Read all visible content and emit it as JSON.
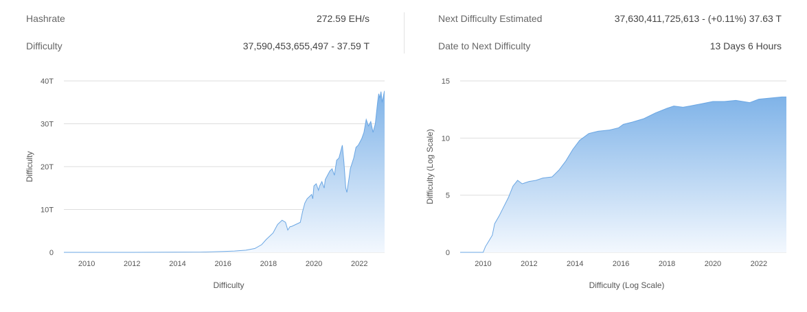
{
  "stats_left": [
    {
      "label": "Hashrate",
      "value": "272.59 EH/s"
    },
    {
      "label": "Difficulty",
      "value": "37,590,453,655,497 - 37.59 T"
    }
  ],
  "stats_right": [
    {
      "label": "Next Difficulty Estimated",
      "value": "37,630,411,725,613 - (+0.11%) 37.63 T"
    },
    {
      "label": "Date to Next Difficulty",
      "value": "13 Days 6 Hours"
    }
  ],
  "colors": {
    "area_top": "#7fb3e8",
    "area_bottom": "#f3f8fe",
    "line": "#6aa6e3",
    "grid": "#dddddd"
  },
  "chart_data": [
    {
      "type": "area",
      "xlabel": "Difficulty",
      "ylabel": "Difficulty",
      "xlim": [
        2009.0,
        2023.2
      ],
      "ylim": [
        0,
        40
      ],
      "x_ticks": [
        2010,
        2012,
        2014,
        2016,
        2018,
        2020,
        2022
      ],
      "y_ticks": [
        0,
        10,
        20,
        30,
        40
      ],
      "y_tick_labels": [
        "0",
        "10T",
        "20T",
        "30T",
        "40T"
      ],
      "grid": true,
      "x": [
        2009.0,
        2012.0,
        2015.0,
        2016.0,
        2016.5,
        2017.0,
        2017.4,
        2017.7,
        2017.9,
        2018.0,
        2018.2,
        2018.4,
        2018.6,
        2018.75,
        2018.85,
        2018.95,
        2019.0,
        2019.2,
        2019.4,
        2019.5,
        2019.6,
        2019.7,
        2019.8,
        2019.9,
        2019.95,
        2020.0,
        2020.1,
        2020.2,
        2020.25,
        2020.35,
        2020.45,
        2020.5,
        2020.6,
        2020.7,
        2020.8,
        2020.9,
        2021.0,
        2021.1,
        2021.2,
        2021.25,
        2021.32,
        2021.4,
        2021.45,
        2021.55,
        2021.6,
        2021.75,
        2021.85,
        2021.95,
        2022.1,
        2022.2,
        2022.3,
        2022.4,
        2022.5,
        2022.6,
        2022.7,
        2022.8,
        2022.85,
        2022.9,
        2022.95,
        2023.0,
        2023.1,
        2023.2
      ],
      "values": [
        0,
        0,
        0.05,
        0.2,
        0.3,
        0.5,
        0.9,
        1.8,
        3.0,
        3.5,
        4.5,
        6.5,
        7.5,
        7.0,
        5.2,
        6.0,
        6.0,
        6.5,
        7.0,
        9.5,
        11.5,
        12.5,
        13.0,
        13.5,
        12.5,
        15.5,
        16.0,
        14.5,
        15.5,
        16.5,
        15.0,
        17.0,
        18.0,
        19.0,
        19.5,
        18.0,
        21.5,
        22.0,
        24.0,
        25.0,
        21.0,
        15.0,
        14.0,
        17.5,
        19.5,
        22.0,
        24.5,
        25.0,
        26.5,
        28.0,
        31.0,
        29.5,
        30.5,
        28.0,
        30.0,
        35.0,
        37.0,
        36.0,
        37.5,
        35.0,
        37.6,
        37.6
      ]
    },
    {
      "type": "area",
      "xlabel": "Difficulty (Log Scale)",
      "ylabel": "Difficulty (Log Scale)",
      "xlim": [
        2009.0,
        2023.2
      ],
      "ylim": [
        0,
        15
      ],
      "x_ticks": [
        2010,
        2012,
        2014,
        2016,
        2018,
        2020,
        2022
      ],
      "y_ticks": [
        0,
        5,
        10,
        15
      ],
      "y_tick_labels": [
        "0",
        "5",
        "10",
        "15"
      ],
      "grid": true,
      "x": [
        2009.0,
        2010.0,
        2010.1,
        2010.25,
        2010.4,
        2010.5,
        2010.7,
        2010.9,
        2011.1,
        2011.3,
        2011.5,
        2011.7,
        2012.0,
        2012.3,
        2012.6,
        2013.0,
        2013.3,
        2013.6,
        2013.9,
        2014.2,
        2014.6,
        2015.0,
        2015.5,
        2015.9,
        2016.1,
        2016.5,
        2017.0,
        2017.5,
        2018.0,
        2018.3,
        2018.7,
        2019.0,
        2019.5,
        2020.0,
        2020.5,
        2021.0,
        2021.3,
        2021.6,
        2022.0,
        2022.5,
        2023.0,
        2023.2
      ],
      "values": [
        0,
        0,
        0.5,
        1.0,
        1.5,
        2.5,
        3.2,
        4.0,
        4.8,
        5.8,
        6.3,
        6.0,
        6.2,
        6.3,
        6.5,
        6.6,
        7.2,
        8.0,
        9.0,
        9.8,
        10.4,
        10.6,
        10.7,
        10.9,
        11.2,
        11.4,
        11.7,
        12.2,
        12.6,
        12.8,
        12.7,
        12.8,
        13.0,
        13.2,
        13.2,
        13.3,
        13.2,
        13.1,
        13.4,
        13.5,
        13.6,
        13.6
      ]
    }
  ]
}
